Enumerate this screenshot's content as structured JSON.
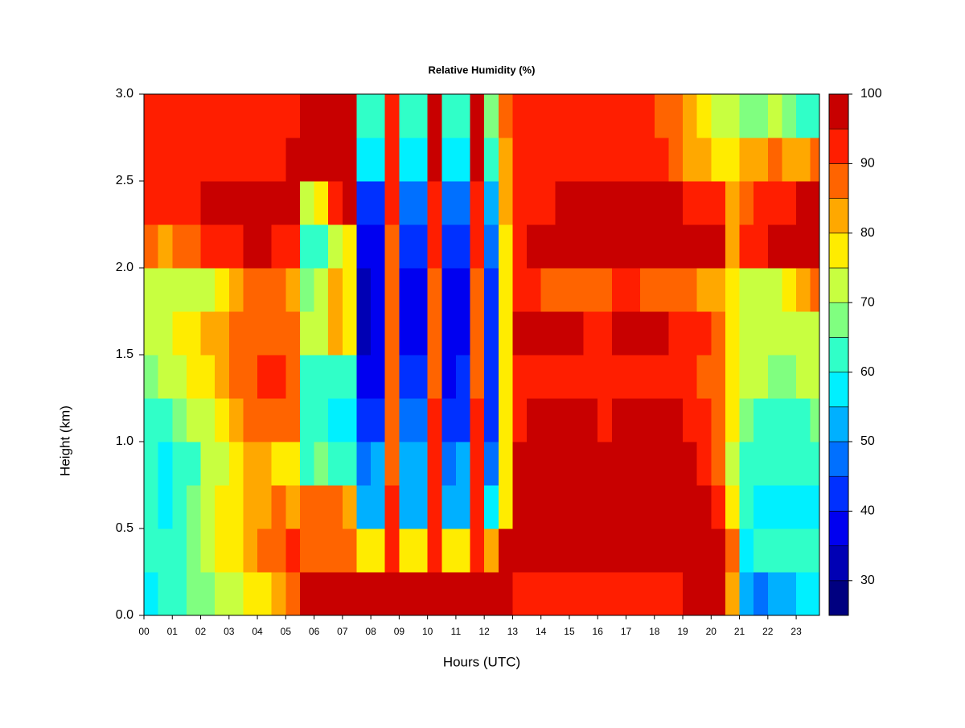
{
  "chart_data": {
    "type": "heatmap",
    "title": "Relative Humidity (%)",
    "xlabel": "Hours (UTC)",
    "ylabel": "Height (km)",
    "x": [
      0.25,
      0.75,
      1.25,
      1.75,
      2.25,
      2.75,
      3.25,
      3.75,
      4.25,
      4.75,
      5.25,
      5.75,
      6.25,
      6.75,
      7.25,
      7.75,
      8.25,
      8.75,
      9.25,
      9.75,
      10.25,
      10.75,
      11.25,
      11.75,
      12.25,
      12.75,
      13.25,
      13.75,
      14.25,
      14.75,
      15.25,
      15.75,
      16.25,
      16.75,
      17.25,
      17.75,
      18.25,
      18.75,
      19.25,
      19.75,
      20.25,
      20.75,
      21.25,
      21.75,
      22.25,
      22.75,
      23.25,
      23.75
    ],
    "y": [
      0.125,
      0.375,
      0.625,
      0.875,
      1.125,
      1.375,
      1.625,
      1.875,
      2.125,
      2.375,
      2.625,
      2.875
    ],
    "z": [
      [
        58,
        60,
        62,
        65,
        68,
        70,
        72,
        75,
        78,
        82,
        85,
        97,
        97,
        97,
        97,
        96,
        96,
        97,
        96,
        96,
        97,
        96,
        96,
        97,
        96,
        97,
        93,
        92,
        90,
        90,
        91,
        90,
        90,
        90,
        91,
        92,
        93,
        94,
        95,
        96,
        96,
        80,
        50,
        48,
        50,
        52,
        55,
        56
      ],
      [
        62,
        62,
        64,
        68,
        72,
        75,
        78,
        80,
        85,
        88,
        90,
        88,
        87,
        86,
        88,
        75,
        78,
        92,
        78,
        76,
        92,
        76,
        78,
        93,
        80,
        95,
        97,
        97,
        97,
        97,
        97,
        97,
        97,
        97,
        97,
        97,
        97,
        97,
        97,
        97,
        97,
        85,
        58,
        60,
        60,
        62,
        60,
        60
      ],
      [
        60,
        58,
        62,
        66,
        72,
        75,
        76,
        80,
        84,
        86,
        80,
        88,
        86,
        85,
        80,
        52,
        50,
        90,
        52,
        50,
        92,
        50,
        52,
        92,
        55,
        75,
        96,
        96,
        97,
        97,
        96,
        95,
        96,
        97,
        97,
        96,
        96,
        97,
        96,
        95,
        93,
        75,
        60,
        58,
        56,
        55,
        55,
        58
      ],
      [
        60,
        58,
        60,
        64,
        70,
        74,
        78,
        82,
        80,
        76,
        75,
        62,
        65,
        60,
        62,
        48,
        50,
        88,
        50,
        50,
        90,
        48,
        50,
        90,
        48,
        75,
        95,
        96,
        96,
        96,
        95,
        95,
        96,
        96,
        96,
        95,
        96,
        96,
        95,
        93,
        88,
        72,
        62,
        60,
        60,
        60,
        60,
        62
      ],
      [
        62,
        64,
        66,
        70,
        72,
        75,
        80,
        85,
        88,
        86,
        85,
        60,
        62,
        58,
        58,
        40,
        42,
        88,
        45,
        45,
        90,
        42,
        44,
        90,
        40,
        75,
        94,
        95,
        95,
        96,
        96,
        95,
        94,
        95,
        96,
        96,
        96,
        95,
        94,
        92,
        88,
        75,
        65,
        64,
        62,
        62,
        64,
        66
      ],
      [
        68,
        70,
        72,
        76,
        78,
        80,
        85,
        88,
        90,
        90,
        88,
        62,
        60,
        62,
        64,
        36,
        38,
        88,
        40,
        40,
        88,
        36,
        40,
        88,
        40,
        75,
        92,
        93,
        94,
        94,
        93,
        92,
        93,
        94,
        94,
        93,
        92,
        92,
        90,
        88,
        86,
        78,
        72,
        70,
        68,
        68,
        70,
        72
      ],
      [
        70,
        72,
        75,
        78,
        80,
        82,
        85,
        87,
        88,
        88,
        86,
        70,
        72,
        80,
        76,
        34,
        36,
        88,
        38,
        36,
        88,
        36,
        38,
        88,
        42,
        76,
        95,
        96,
        96,
        96,
        95,
        94,
        94,
        95,
        95,
        96,
        95,
        94,
        93,
        90,
        86,
        78,
        70,
        72,
        72,
        72,
        72,
        74
      ],
      [
        72,
        70,
        70,
        72,
        74,
        78,
        82,
        85,
        86,
        87,
        84,
        66,
        70,
        80,
        78,
        34,
        38,
        88,
        38,
        38,
        88,
        36,
        38,
        88,
        44,
        76,
        90,
        90,
        88,
        88,
        88,
        86,
        88,
        90,
        90,
        88,
        88,
        86,
        85,
        84,
        80,
        76,
        72,
        74,
        74,
        75,
        80,
        85
      ],
      [
        86,
        84,
        86,
        88,
        90,
        92,
        94,
        95,
        95,
        94,
        92,
        60,
        62,
        70,
        76,
        36,
        38,
        88,
        40,
        40,
        90,
        40,
        42,
        90,
        48,
        78,
        94,
        95,
        96,
        96,
        96,
        96,
        96,
        96,
        97,
        97,
        97,
        97,
        97,
        96,
        95,
        82,
        90,
        94,
        96,
        97,
        97,
        97
      ],
      [
        92,
        93,
        94,
        94,
        95,
        96,
        96,
        97,
        97,
        96,
        95,
        70,
        76,
        90,
        95,
        42,
        44,
        90,
        45,
        45,
        92,
        46,
        48,
        92,
        52,
        80,
        92,
        93,
        94,
        95,
        95,
        95,
        95,
        95,
        96,
        96,
        96,
        95,
        92,
        90,
        90,
        80,
        86,
        90,
        92,
        94,
        95,
        95
      ],
      [
        92,
        92,
        93,
        94,
        94,
        94,
        92,
        92,
        93,
        94,
        95,
        96,
        97,
        97,
        97,
        56,
        55,
        92,
        56,
        58,
        97,
        56,
        58,
        97,
        62,
        82,
        92,
        92,
        93,
        93,
        92,
        92,
        93,
        92,
        92,
        92,
        90,
        88,
        84,
        80,
        78,
        76,
        80,
        84,
        86,
        84,
        84,
        86
      ],
      [
        90,
        91,
        92,
        92,
        92,
        92,
        90,
        90,
        90,
        92,
        93,
        97,
        97,
        97,
        98,
        62,
        60,
        92,
        62,
        62,
        97,
        62,
        64,
        97,
        66,
        85,
        91,
        92,
        92,
        92,
        92,
        92,
        92,
        92,
        92,
        90,
        88,
        86,
        80,
        76,
        74,
        70,
        66,
        68,
        72,
        66,
        64,
        62
      ]
    ],
    "xlim": [
      0,
      23.82
    ],
    "ylim": [
      0,
      3
    ],
    "xticks": [
      {
        "value": 0,
        "label": "00"
      },
      {
        "value": 1,
        "label": "01"
      },
      {
        "value": 2,
        "label": "02"
      },
      {
        "value": 3,
        "label": "03"
      },
      {
        "value": 4,
        "label": "04"
      },
      {
        "value": 5,
        "label": "05"
      },
      {
        "value": 6,
        "label": "06"
      },
      {
        "value": 7,
        "label": "07"
      },
      {
        "value": 8,
        "label": "08"
      },
      {
        "value": 9,
        "label": "09"
      },
      {
        "value": 10,
        "label": "10"
      },
      {
        "value": 11,
        "label": "11"
      },
      {
        "value": 12,
        "label": "12"
      },
      {
        "value": 13,
        "label": "13"
      },
      {
        "value": 14,
        "label": "14"
      },
      {
        "value": 15,
        "label": "15"
      },
      {
        "value": 16,
        "label": "16"
      },
      {
        "value": 17,
        "label": "17"
      },
      {
        "value": 18,
        "label": "18"
      },
      {
        "value": 19,
        "label": "19"
      },
      {
        "value": 20,
        "label": "20"
      },
      {
        "value": 21,
        "label": "21"
      },
      {
        "value": 22,
        "label": "22"
      },
      {
        "value": 23,
        "label": "23"
      }
    ],
    "yticks": [
      {
        "value": 0,
        "label": "0.0"
      },
      {
        "value": 0.5,
        "label": "0.5"
      },
      {
        "value": 1,
        "label": "1.0"
      },
      {
        "value": 1.5,
        "label": "1.5"
      },
      {
        "value": 2,
        "label": "2.0"
      },
      {
        "value": 2.5,
        "label": "2.5"
      },
      {
        "value": 3,
        "label": "3.0"
      }
    ],
    "colorbar": {
      "levels": [
        25,
        30,
        35,
        40,
        45,
        50,
        55,
        60,
        65,
        70,
        75,
        80,
        85,
        90,
        95,
        100
      ],
      "colors": [
        "#000080",
        "#0000b4",
        "#0000f0",
        "#0030ff",
        "#0070ff",
        "#00b0ff",
        "#00f0ff",
        "#30ffc8",
        "#80ff80",
        "#c8ff40",
        "#ffec00",
        "#ffa800",
        "#ff6400",
        "#ff1e00",
        "#c80000",
        "#800000"
      ],
      "ticks": [
        30,
        40,
        50,
        60,
        70,
        80,
        90,
        100
      ]
    }
  }
}
